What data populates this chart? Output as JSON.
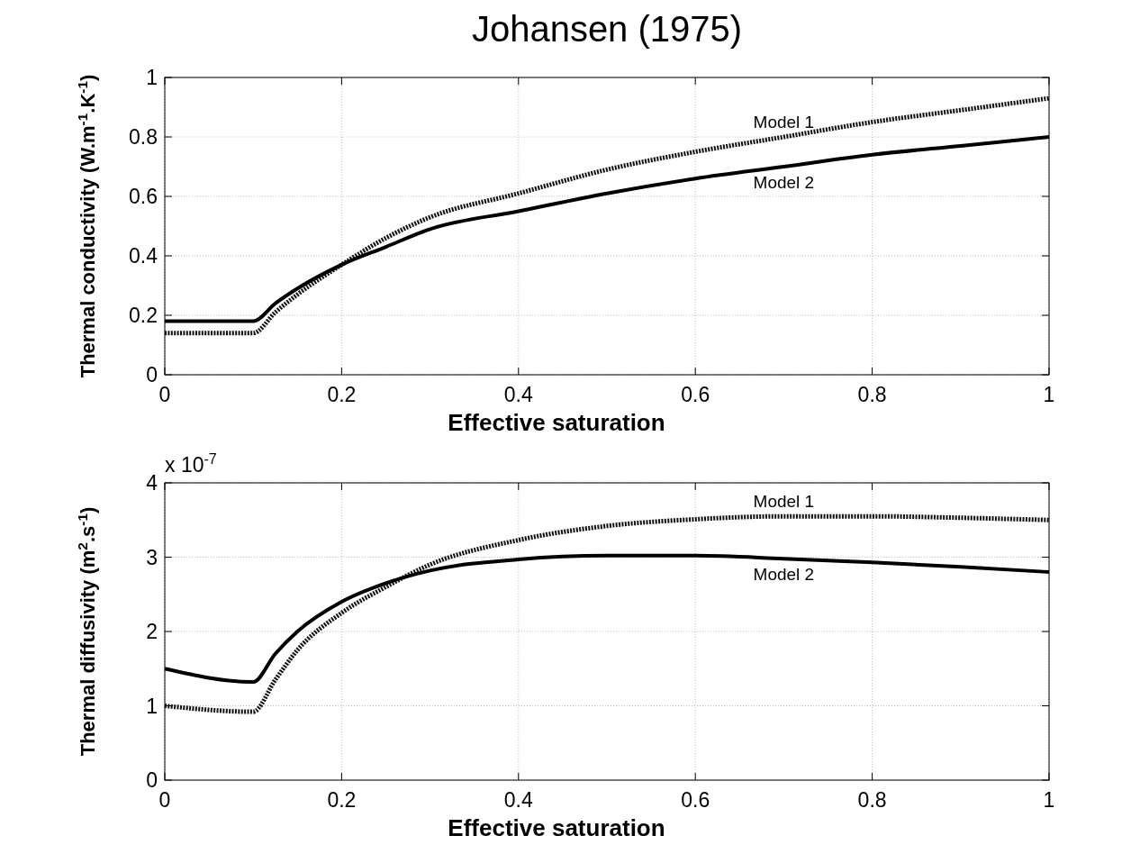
{
  "chart_data": [
    {
      "type": "line",
      "title": "Johansen (1975)",
      "xlabel": "Effective saturation",
      "ylabel": "Thermal conductivity (W.m$^{-1}$.K$^{-1}$)",
      "xlim": [
        0,
        1
      ],
      "xticks": [
        0,
        0.2,
        0.4,
        0.6,
        0.8,
        1
      ],
      "ylim": [
        0,
        1
      ],
      "yticks": [
        0,
        0.2,
        0.4,
        0.6,
        0.8,
        1
      ],
      "grid": true,
      "series": [
        {
          "name": "Model 1",
          "color": "#111111",
          "line_style": "dotted",
          "x": [
            0,
            0.1,
            0.125,
            0.15,
            0.2,
            0.25,
            0.3,
            0.4,
            0.5,
            0.6,
            0.7,
            0.8,
            0.9,
            1
          ],
          "values": [
            0.14,
            0.14,
            0.21,
            0.27,
            0.37,
            0.46,
            0.53,
            0.61,
            0.69,
            0.75,
            0.8,
            0.85,
            0.89,
            0.93
          ]
        },
        {
          "name": "Model 2",
          "color": "#000000",
          "line_style": "solid",
          "x": [
            0,
            0.1,
            0.125,
            0.15,
            0.2,
            0.25,
            0.3,
            0.4,
            0.5,
            0.6,
            0.7,
            0.8,
            0.9,
            1
          ],
          "values": [
            0.18,
            0.18,
            0.24,
            0.29,
            0.37,
            0.43,
            0.49,
            0.55,
            0.61,
            0.66,
            0.7,
            0.74,
            0.77,
            0.8
          ]
        }
      ]
    },
    {
      "type": "line",
      "xlabel": "Effective saturation",
      "ylabel": "Thermal diffusivity (m$^{2}$.s$^{-1}$)",
      "annotations": [
        "x 10$^{-7}$"
      ],
      "xlim": [
        0,
        1
      ],
      "xticks": [
        0,
        0.2,
        0.4,
        0.6,
        0.8,
        1
      ],
      "ylim": [
        0,
        4
      ],
      "yticks": [
        0,
        1,
        2,
        3,
        4
      ],
      "grid": true,
      "series": [
        {
          "name": "Model 1",
          "color": "#111111",
          "line_style": "dotted",
          "x": [
            0,
            0.1,
            0.125,
            0.15,
            0.2,
            0.25,
            0.3,
            0.4,
            0.5,
            0.6,
            0.7,
            0.8,
            0.9,
            1
          ],
          "values": [
            1.0,
            0.92,
            1.35,
            1.75,
            2.25,
            2.6,
            2.9,
            3.23,
            3.42,
            3.51,
            3.55,
            3.55,
            3.53,
            3.5
          ]
        },
        {
          "name": "Model 2",
          "color": "#000000",
          "line_style": "solid",
          "x": [
            0,
            0.1,
            0.125,
            0.15,
            0.2,
            0.25,
            0.3,
            0.4,
            0.5,
            0.6,
            0.7,
            0.8,
            0.9,
            1
          ],
          "values": [
            1.5,
            1.32,
            1.7,
            2.0,
            2.4,
            2.65,
            2.82,
            2.97,
            3.02,
            3.02,
            2.98,
            2.93,
            2.87,
            2.8
          ]
        }
      ]
    }
  ]
}
